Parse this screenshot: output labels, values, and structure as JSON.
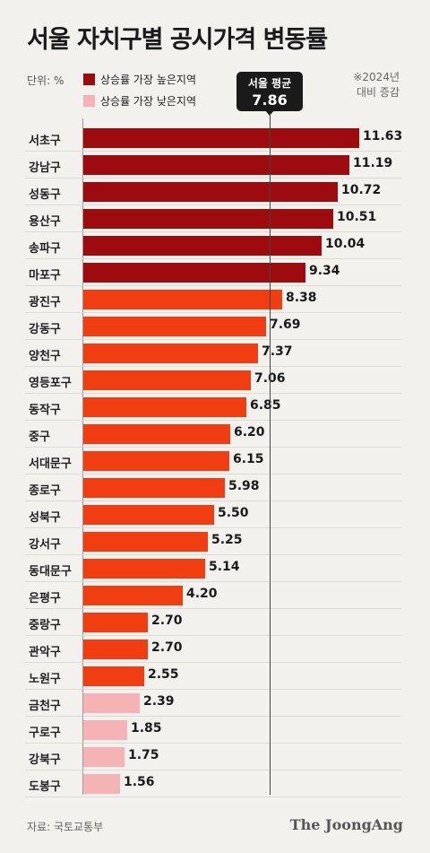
{
  "header": {
    "title": "서울 자치구별 공시가격 변동률",
    "unit": "단위: %",
    "note_line1": "※2024년",
    "note_line2": "대비 증감"
  },
  "legend": [
    {
      "label": "상승률 가장 높은지역",
      "color": "#9e0b0f"
    },
    {
      "label": "상승률 가장 낮은지역",
      "color": "#f6b3b5"
    }
  ],
  "average": {
    "label": "서울 평균",
    "value": "7.86"
  },
  "footer": {
    "source": "자료: 국토교통부",
    "logo": "The JoongAng"
  },
  "chart_data": {
    "type": "bar",
    "orientation": "horizontal",
    "title": "서울 자치구별 공시가격 변동률",
    "xlim": [
      0,
      12
    ],
    "reference_line": 7.86,
    "categories": [
      "서초구",
      "강남구",
      "성동구",
      "용산구",
      "송파구",
      "마포구",
      "광진구",
      "강동구",
      "양천구",
      "영등포구",
      "동작구",
      "중구",
      "서대문구",
      "종로구",
      "성북구",
      "강서구",
      "동대문구",
      "은평구",
      "중랑구",
      "관악구",
      "노원구",
      "금천구",
      "구로구",
      "강북구",
      "도봉구"
    ],
    "values": [
      11.63,
      11.19,
      10.72,
      10.51,
      10.04,
      9.34,
      8.38,
      7.69,
      7.37,
      7.06,
      6.85,
      6.2,
      6.15,
      5.98,
      5.5,
      5.25,
      5.14,
      4.2,
      2.7,
      2.7,
      2.55,
      2.39,
      1.85,
      1.75,
      1.56
    ],
    "labels": [
      "11.63",
      "11.19",
      "10.72",
      "10.51",
      "10.04",
      "9.34",
      "8.38",
      "7.69",
      "7.37",
      "7.06",
      "6.85",
      "6.20",
      "6.15",
      "5.98",
      "5.50",
      "5.25",
      "5.14",
      "4.20",
      "2.70",
      "2.70",
      "2.55",
      "2.39",
      "1.85",
      "1.75",
      "1.56"
    ],
    "colors": [
      "#9e0b0f",
      "#9e0b0f",
      "#9e0b0f",
      "#9e0b0f",
      "#9e0b0f",
      "#9e0b0f",
      "#f03e12",
      "#f03e12",
      "#f03e12",
      "#f03e12",
      "#f03e12",
      "#f03e12",
      "#f03e12",
      "#f03e12",
      "#f03e12",
      "#f03e12",
      "#f03e12",
      "#f03e12",
      "#f03e12",
      "#f03e12",
      "#f03e12",
      "#f6b3b5",
      "#f6b3b5",
      "#f6b3b5",
      "#f6b3b5"
    ]
  }
}
